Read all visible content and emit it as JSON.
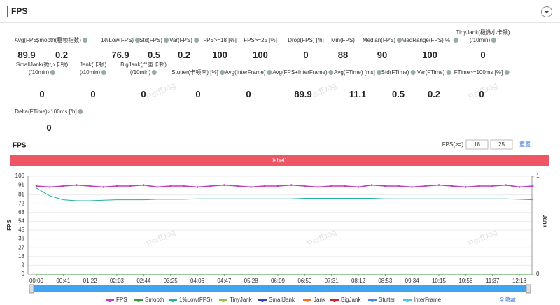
{
  "header": {
    "title": "FPS"
  },
  "watermark": "PerfDog",
  "metrics": [
    [
      {
        "label": [
          "Avg(FPS)"
        ],
        "value": 89.9
      },
      {
        "label": [
          "Smooth(稳帧指数)"
        ],
        "value": 0.2
      },
      {
        "label": [
          "1%Low(FPS)"
        ],
        "value": 76.9
      },
      {
        "label": [
          "Std(FPS)"
        ],
        "value": 0.5
      },
      {
        "label": [
          "Var(FPS)"
        ],
        "value": 0.2
      },
      {
        "label": [
          "FPS>=18 [%]"
        ],
        "value": 100
      },
      {
        "label": [
          "FPS>=25 [%]"
        ],
        "value": 100
      },
      {
        "label": [
          "Drop(FPS) [/h]"
        ],
        "value": 0
      },
      {
        "label": [
          "Min(FPS)"
        ],
        "value": 88
      },
      {
        "label": [
          "Median(FPS)"
        ],
        "value": 90
      },
      {
        "label": [
          "MedRange(FPS)[%]"
        ],
        "value": 100
      },
      {
        "label": [
          "TinyJank(极微小卡顿)",
          "(/10min)"
        ],
        "value": 0
      }
    ],
    [
      {
        "label": [
          "SmallJank(微小卡顿)",
          "(/10min)"
        ],
        "value": 0
      },
      {
        "label": [
          "Jank(卡顿)",
          "(/10min)"
        ],
        "value": 0
      },
      {
        "label": [
          "BigJank(严重卡顿)",
          "(/10min)"
        ],
        "value": 0
      },
      {
        "label": [
          "Stutter(卡顿率) [%]"
        ],
        "value": 0
      },
      {
        "label": [
          "Avg(InterFrame)"
        ],
        "value": 0
      },
      {
        "label": [
          "Avg(FPS+InterFrame)"
        ],
        "value": 89.9
      },
      {
        "label": [
          "Avg(FTime) [ms]"
        ],
        "value": 11.1
      },
      {
        "label": [
          "Std(FTime)"
        ],
        "value": 0.5
      },
      {
        "label": [
          "Var(FTime)"
        ],
        "value": 0.2
      },
      {
        "label": [
          "FTime>=100ms [%]"
        ],
        "value": 0
      }
    ],
    [
      {
        "label": [
          "Delta(FTime)>100ms [/h]"
        ],
        "value": 0
      }
    ]
  ],
  "chart_data": {
    "type": "line",
    "title": "FPS",
    "band_label": "label1",
    "threshold_label": "FPS(>=)",
    "thresholds": [
      18,
      25
    ],
    "reset": "重置",
    "hide_all": "全隐藏",
    "y_label": "FPS",
    "y2_label": "Jank",
    "categories": [
      "00:00",
      null,
      "00:41",
      null,
      "01:22",
      null,
      "02:03",
      null,
      "02:44",
      null,
      "03:25",
      null,
      "04:06",
      null,
      "04:47",
      null,
      "05:28",
      null,
      "06:09",
      null,
      "06:50",
      null,
      "07:31",
      null,
      "08:12",
      null,
      "08:53",
      null,
      "09:34",
      null,
      "10:15",
      null,
      "10:56",
      null,
      "11:37",
      null,
      "12:18",
      null
    ],
    "ylim": [
      0,
      100
    ],
    "yticks": [
      0,
      9,
      18,
      27,
      36,
      45,
      54,
      63,
      72,
      81,
      91,
      100
    ],
    "y2lim": [
      0,
      1
    ],
    "y2ticks": [
      0,
      1
    ],
    "series": [
      {
        "name": "FPS",
        "color": "#c03cc0",
        "values": [
          90,
          89,
          90,
          91,
          90,
          89,
          90,
          90,
          91,
          89,
          90,
          90,
          89,
          90,
          91,
          90,
          89,
          90,
          90,
          91,
          90,
          89,
          90,
          90,
          89,
          91,
          90,
          90,
          89,
          90,
          91,
          90,
          89,
          90,
          90,
          91,
          89,
          90
        ]
      },
      {
        "name": "Smooth",
        "color": "#3a9a3a",
        "values": [
          0,
          0,
          0,
          0,
          0,
          0,
          0,
          0,
          0,
          0,
          0,
          0,
          0,
          0,
          0,
          0,
          0,
          0,
          0,
          0,
          0,
          0,
          0,
          0,
          0,
          0,
          0,
          0,
          0,
          0,
          0,
          0,
          0,
          0,
          0,
          0,
          0,
          0
        ]
      },
      {
        "name": "1%Low(FPS)",
        "color": "#22b0a0",
        "values": [
          88,
          80,
          76,
          75,
          75,
          75.5,
          76,
          76,
          76,
          76.5,
          76.5,
          76.5,
          77,
          77,
          77,
          77,
          77,
          77,
          77,
          77,
          77.5,
          77.5,
          77.5,
          77.5,
          77.5,
          77.5,
          77,
          77,
          77,
          77,
          77,
          77,
          77,
          77,
          77,
          77,
          76.5,
          76
        ]
      },
      {
        "name": "TinyJank",
        "color": "#8cc43c",
        "axis": "y2",
        "values": [
          0,
          0,
          0,
          0,
          0,
          0,
          0,
          0,
          0,
          0,
          0,
          0,
          0,
          0,
          0,
          0,
          0,
          0,
          0,
          0,
          0,
          0,
          0,
          0,
          0,
          0,
          0,
          0,
          0,
          0,
          0,
          0,
          0,
          0,
          0,
          0,
          0,
          0
        ]
      },
      {
        "name": "SmallJank",
        "color": "#3040c0",
        "axis": "y2",
        "values": [
          0,
          0,
          0,
          0,
          0,
          0,
          0,
          0,
          0,
          0,
          0,
          0,
          0,
          0,
          0,
          0,
          0,
          0,
          0,
          0,
          0,
          0,
          0,
          0,
          0,
          0,
          0,
          0,
          0,
          0,
          0,
          0,
          0,
          0,
          0,
          0,
          0,
          0
        ]
      },
      {
        "name": "Jank",
        "color": "#f07030",
        "axis": "y2",
        "values": [
          0,
          0,
          0,
          0,
          0,
          0,
          0,
          0,
          0,
          0,
          0,
          0,
          0,
          0,
          0,
          0,
          0,
          0,
          0,
          0,
          0,
          0,
          0,
          0,
          0,
          0,
          0,
          0,
          0,
          0,
          0,
          0,
          0,
          0,
          0,
          0,
          0,
          0
        ]
      },
      {
        "name": "BigJank",
        "color": "#d02020",
        "axis": "y2",
        "values": [
          0,
          0,
          0,
          0,
          0,
          0,
          0,
          0,
          0,
          0,
          0,
          0,
          0,
          0,
          0,
          0,
          0,
          0,
          0,
          0,
          0,
          0,
          0,
          0,
          0,
          0,
          0,
          0,
          0,
          0,
          0,
          0,
          0,
          0,
          0,
          0,
          0,
          0
        ]
      },
      {
        "name": "Stutter",
        "color": "#4a88e0",
        "axis": "y2",
        "values": [
          0,
          0,
          0,
          0,
          0,
          0,
          0,
          0,
          0,
          0,
          0,
          0,
          0,
          0,
          0,
          0,
          0,
          0,
          0,
          0,
          0,
          0,
          0,
          0,
          0,
          0,
          0,
          0,
          0,
          0,
          0,
          0,
          0,
          0,
          0,
          0,
          0,
          0
        ]
      },
      {
        "name": "InterFrame",
        "color": "#40c8e8",
        "axis": "y2",
        "values": [
          0,
          0,
          0,
          0,
          0,
          0,
          0,
          0,
          0,
          0,
          0,
          0,
          0,
          0,
          0,
          0,
          0,
          0,
          0,
          0,
          0,
          0,
          0,
          0,
          0,
          0,
          0,
          0,
          0,
          0,
          0,
          0,
          0,
          0,
          0,
          0,
          0,
          0
        ]
      }
    ]
  }
}
